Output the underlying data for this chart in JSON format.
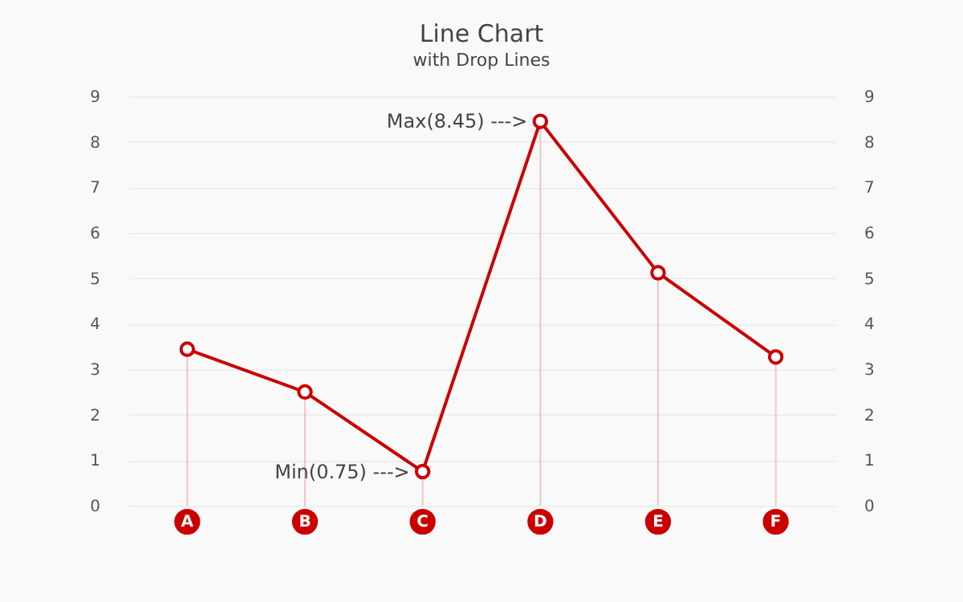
{
  "chart_data": {
    "type": "line",
    "title": "Line Chart",
    "subtitle": "with Drop Lines",
    "categories": [
      "A",
      "B",
      "C",
      "D",
      "E",
      "F"
    ],
    "series": [
      {
        "color": "#cc0000",
        "marker": "none",
        "values": [
          3.44,
          2.5,
          0.75,
          8.45,
          5.12,
          3.27
        ]
      },
      {
        "type": "lollipop",
        "color": "#cc0000",
        "values": [
          3.44,
          2.5,
          0.75,
          8.45,
          5.12,
          3.27
        ]
      }
    ],
    "ylim": [
      0,
      9
    ],
    "yticks": [
      0,
      1,
      2,
      3,
      4,
      5,
      6,
      7,
      8,
      9
    ],
    "y2lim": [
      0,
      9
    ],
    "y2ticks": [
      0,
      1,
      2,
      3,
      4,
      5,
      6,
      7,
      8,
      9
    ],
    "annotations": [
      {
        "text": "Max(8.45) --->",
        "x": "D",
        "y": 8.45
      },
      {
        "text": "Min(0.75) --->",
        "x": "C",
        "y": 0.75
      }
    ],
    "grid": "y",
    "marker": "circle",
    "line_style": "solid"
  }
}
